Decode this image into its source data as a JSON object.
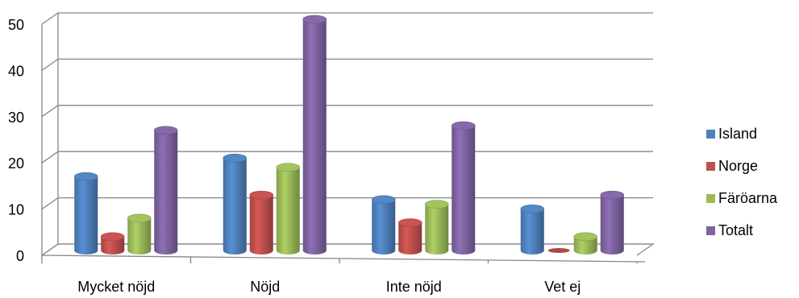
{
  "chart_data": {
    "type": "bar",
    "title": "",
    "xlabel": "",
    "ylabel": "",
    "categories": [
      "Mycket nöjd",
      "Nöjd",
      "Inte nöjd",
      "Vet ej"
    ],
    "series": [
      {
        "name": "Island",
        "values": [
          16,
          20,
          11,
          9
        ],
        "color": "#4f81bd"
      },
      {
        "name": "Norge",
        "values": [
          3,
          12,
          6,
          0
        ],
        "color": "#c0504d"
      },
      {
        "name": "Färöarna",
        "values": [
          7,
          18,
          10,
          3
        ],
        "color": "#9bbb59"
      },
      {
        "name": "Totalt",
        "values": [
          26,
          50,
          27,
          12
        ],
        "color": "#8064a2"
      }
    ],
    "ylim": [
      0,
      50
    ],
    "yticks": [
      "0",
      "10",
      "20",
      "30",
      "40",
      "50"
    ],
    "grid": true,
    "legend_position": "right",
    "style": "3d-clustered-column"
  }
}
